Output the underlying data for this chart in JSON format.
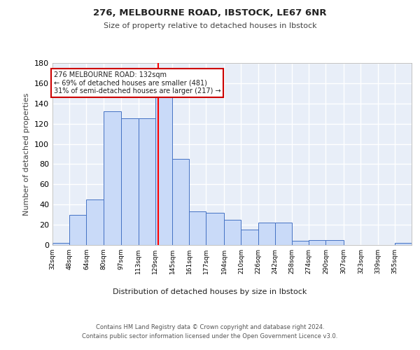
{
  "title1": "276, MELBOURNE ROAD, IBSTOCK, LE67 6NR",
  "title2": "Size of property relative to detached houses in Ibstock",
  "xlabel": "Distribution of detached houses by size in Ibstock",
  "ylabel": "Number of detached properties",
  "bin_labels": [
    "32sqm",
    "48sqm",
    "64sqm",
    "80sqm",
    "97sqm",
    "113sqm",
    "129sqm",
    "145sqm",
    "161sqm",
    "177sqm",
    "194sqm",
    "210sqm",
    "226sqm",
    "242sqm",
    "258sqm",
    "274sqm",
    "290sqm",
    "307sqm",
    "323sqm",
    "339sqm",
    "355sqm"
  ],
  "bin_edges": [
    32,
    48,
    64,
    80,
    97,
    113,
    129,
    145,
    161,
    177,
    194,
    210,
    226,
    242,
    258,
    274,
    290,
    307,
    323,
    339,
    355
  ],
  "bar_heights": [
    2,
    30,
    45,
    132,
    125,
    125,
    148,
    85,
    33,
    32,
    25,
    15,
    22,
    22,
    4,
    5,
    5,
    0,
    0,
    0,
    2
  ],
  "bar_color": "#c9daf8",
  "bar_edge_color": "#4472c4",
  "background_color": "#e8eef8",
  "grid_color": "#ffffff",
  "red_line_x": 132,
  "annotation_text": "276 MELBOURNE ROAD: 132sqm\n← 69% of detached houses are smaller (481)\n31% of semi-detached houses are larger (217) →",
  "annotation_box_color": "#ffffff",
  "annotation_box_edge": "#cc0000",
  "ylim": [
    0,
    180
  ],
  "yticks": [
    0,
    20,
    40,
    60,
    80,
    100,
    120,
    140,
    160,
    180
  ],
  "footer1": "Contains HM Land Registry data © Crown copyright and database right 2024.",
  "footer2": "Contains public sector information licensed under the Open Government Licence v3.0."
}
